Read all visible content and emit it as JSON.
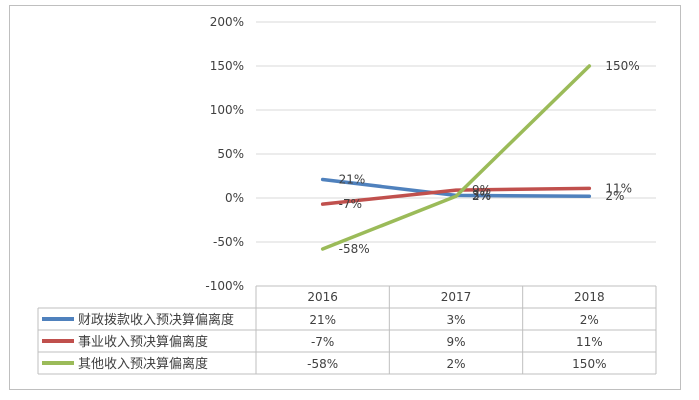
{
  "chart_data": {
    "type": "line",
    "categories": [
      "2016",
      "2017",
      "2018"
    ],
    "y_ticks": [
      "200%",
      "150%",
      "100%",
      "50%",
      "0%",
      "-50%",
      "-100%"
    ],
    "ylim": [
      -100,
      200
    ],
    "grid": true,
    "legend": "data table",
    "series": [
      {
        "name": "财政拨款收入预决算偏离度",
        "values": [
          21,
          3,
          2
        ],
        "labels": [
          "21%",
          "3%",
          "2%"
        ],
        "color": "#4f81bd"
      },
      {
        "name": "事业收入预决算偏离度",
        "values": [
          -7,
          9,
          11
        ],
        "labels": [
          "-7%",
          "9%",
          "11%"
        ],
        "color": "#c0504d"
      },
      {
        "name": "其他收入预决算偏离度",
        "values": [
          -58,
          2,
          150
        ],
        "labels": [
          "-58%",
          "2%",
          "150%"
        ],
        "color": "#9bbb59"
      }
    ]
  }
}
